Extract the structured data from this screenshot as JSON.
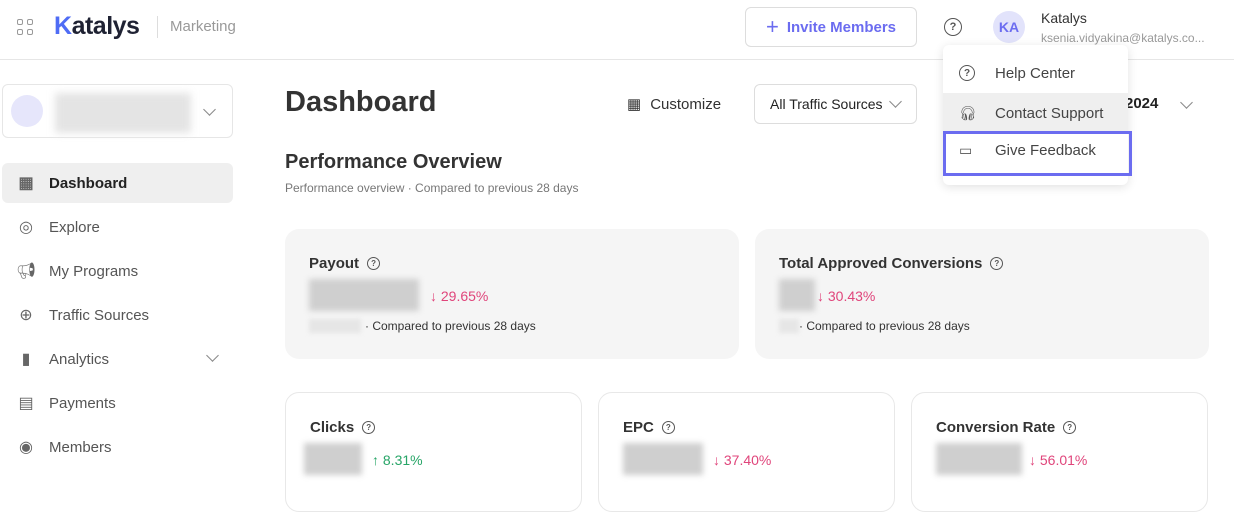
{
  "header": {
    "logo": "Katalys",
    "app_name": "Marketing",
    "invite_label": "Invite Members",
    "user": {
      "initials": "KA",
      "name": "Katalys",
      "email": "ksenia.vidyakina@katalys.co..."
    }
  },
  "sidebar": {
    "items": [
      {
        "label": "Dashboard",
        "icon": "dashboard-icon",
        "active": true
      },
      {
        "label": "Explore",
        "icon": "compass-icon"
      },
      {
        "label": "My Programs",
        "icon": "megaphone-icon"
      },
      {
        "label": "Traffic Sources",
        "icon": "globe-icon"
      },
      {
        "label": "Analytics",
        "icon": "bar-chart-icon",
        "expandable": true
      },
      {
        "label": "Payments",
        "icon": "receipt-icon"
      },
      {
        "label": "Members",
        "icon": "user-circle-icon"
      }
    ]
  },
  "main": {
    "title": "Dashboard",
    "customize_label": "Customize",
    "traffic_filter": "All Traffic Sources",
    "date_partial": "2024",
    "section_title": "Performance Overview",
    "section_sub": "Performance overview · Compared to previous 28 days",
    "cards": [
      {
        "title": "Payout",
        "change": "29.65%",
        "dir": "down",
        "compare": "· Compared to previous 28 days"
      },
      {
        "title": "Total Approved Conversions",
        "change": "30.43%",
        "dir": "down",
        "compare": "· Compared to previous 28 days"
      },
      {
        "title": "Clicks",
        "change": "8.31%",
        "dir": "up"
      },
      {
        "title": "EPC",
        "change": "37.40%",
        "dir": "down"
      },
      {
        "title": "Conversion Rate",
        "change": "56.01%",
        "dir": "down"
      }
    ]
  },
  "help_menu": {
    "items": [
      {
        "label": "Help Center",
        "icon": "help-circle-icon"
      },
      {
        "label": "Contact Support",
        "icon": "headset-icon"
      },
      {
        "label": "Give Feedback",
        "icon": "feedback-icon"
      }
    ]
  },
  "colors": {
    "accent": "#6b6cf0",
    "negative": "#e0457b",
    "positive": "#27a567"
  }
}
